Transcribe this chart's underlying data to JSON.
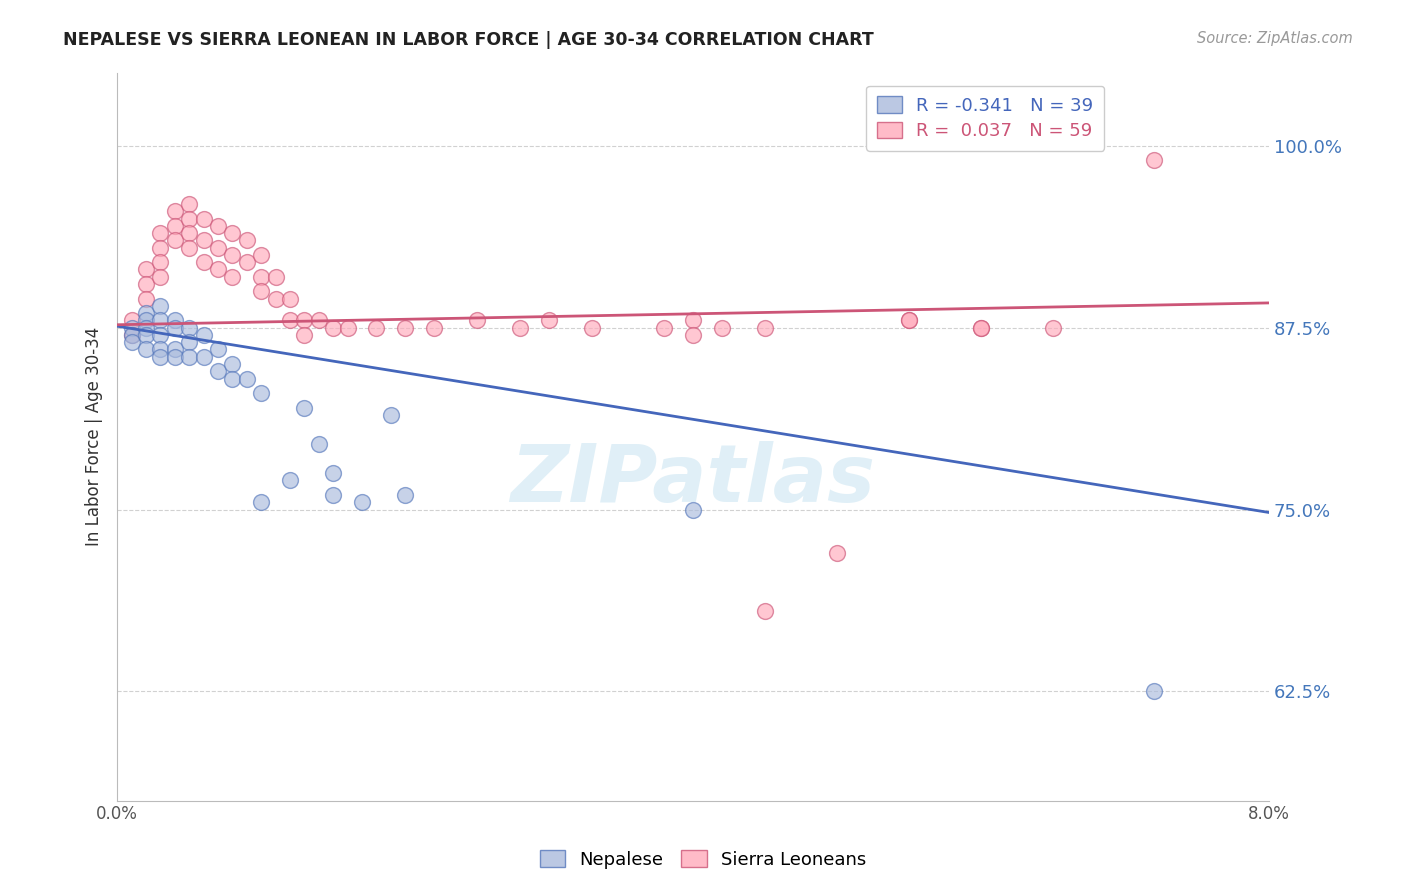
{
  "title": "NEPALESE VS SIERRA LEONEAN IN LABOR FORCE | AGE 30-34 CORRELATION CHART",
  "source_text": "Source: ZipAtlas.com",
  "ylabel": "In Labor Force | Age 30-34",
  "xlim": [
    0.0,
    0.08
  ],
  "ylim": [
    0.55,
    1.05
  ],
  "yticks": [
    0.625,
    0.75,
    0.875,
    1.0
  ],
  "ytick_labels": [
    "62.5%",
    "75.0%",
    "87.5%",
    "100.0%"
  ],
  "xticks": [
    0.0,
    0.01,
    0.02,
    0.03,
    0.04,
    0.05,
    0.06,
    0.07,
    0.08
  ],
  "xtick_labels": [
    "0.0%",
    "",
    "",
    "",
    "",
    "",
    "",
    "",
    "8.0%"
  ],
  "nepalese_color": "#aabbdd",
  "nepalese_edge": "#5577bb",
  "sierra_leone_color": "#ffaabb",
  "sierra_leone_edge": "#cc5577",
  "trend_blue": "#4466bb",
  "trend_pink": "#cc5577",
  "watermark_color": "#bbddee",
  "legend_r_blue": "-0.341",
  "legend_n_blue": "39",
  "legend_r_pink": "0.037",
  "legend_n_pink": "59",
  "nepalese_x": [
    0.001,
    0.001,
    0.001,
    0.002,
    0.002,
    0.002,
    0.002,
    0.002,
    0.003,
    0.003,
    0.003,
    0.003,
    0.003,
    0.004,
    0.004,
    0.004,
    0.004,
    0.005,
    0.005,
    0.005,
    0.006,
    0.006,
    0.007,
    0.007,
    0.008,
    0.008,
    0.009,
    0.01,
    0.01,
    0.012,
    0.013,
    0.014,
    0.015,
    0.015,
    0.017,
    0.019,
    0.02,
    0.04,
    0.072
  ],
  "nepalese_y": [
    0.875,
    0.87,
    0.865,
    0.885,
    0.88,
    0.875,
    0.87,
    0.86,
    0.89,
    0.88,
    0.87,
    0.86,
    0.855,
    0.88,
    0.875,
    0.86,
    0.855,
    0.875,
    0.865,
    0.855,
    0.87,
    0.855,
    0.86,
    0.845,
    0.85,
    0.84,
    0.84,
    0.83,
    0.755,
    0.77,
    0.82,
    0.795,
    0.775,
    0.76,
    0.755,
    0.815,
    0.76,
    0.75,
    0.625
  ],
  "sierra_x": [
    0.001,
    0.001,
    0.002,
    0.002,
    0.002,
    0.003,
    0.003,
    0.003,
    0.003,
    0.004,
    0.004,
    0.004,
    0.005,
    0.005,
    0.005,
    0.005,
    0.006,
    0.006,
    0.006,
    0.007,
    0.007,
    0.007,
    0.008,
    0.008,
    0.008,
    0.009,
    0.009,
    0.01,
    0.01,
    0.01,
    0.011,
    0.011,
    0.012,
    0.012,
    0.013,
    0.013,
    0.014,
    0.015,
    0.016,
    0.018,
    0.02,
    0.022,
    0.025,
    0.028,
    0.03,
    0.033,
    0.038,
    0.04,
    0.042,
    0.045,
    0.05,
    0.055,
    0.06,
    0.065,
    0.04,
    0.055,
    0.06,
    0.072,
    0.045
  ],
  "sierra_y": [
    0.88,
    0.87,
    0.915,
    0.905,
    0.895,
    0.94,
    0.93,
    0.92,
    0.91,
    0.955,
    0.945,
    0.935,
    0.96,
    0.95,
    0.94,
    0.93,
    0.95,
    0.935,
    0.92,
    0.945,
    0.93,
    0.915,
    0.94,
    0.925,
    0.91,
    0.935,
    0.92,
    0.925,
    0.91,
    0.9,
    0.91,
    0.895,
    0.895,
    0.88,
    0.88,
    0.87,
    0.88,
    0.875,
    0.875,
    0.875,
    0.875,
    0.875,
    0.88,
    0.875,
    0.88,
    0.875,
    0.875,
    0.88,
    0.875,
    0.875,
    0.72,
    0.88,
    0.875,
    0.875,
    0.87,
    0.88,
    0.875,
    0.99,
    0.68
  ]
}
